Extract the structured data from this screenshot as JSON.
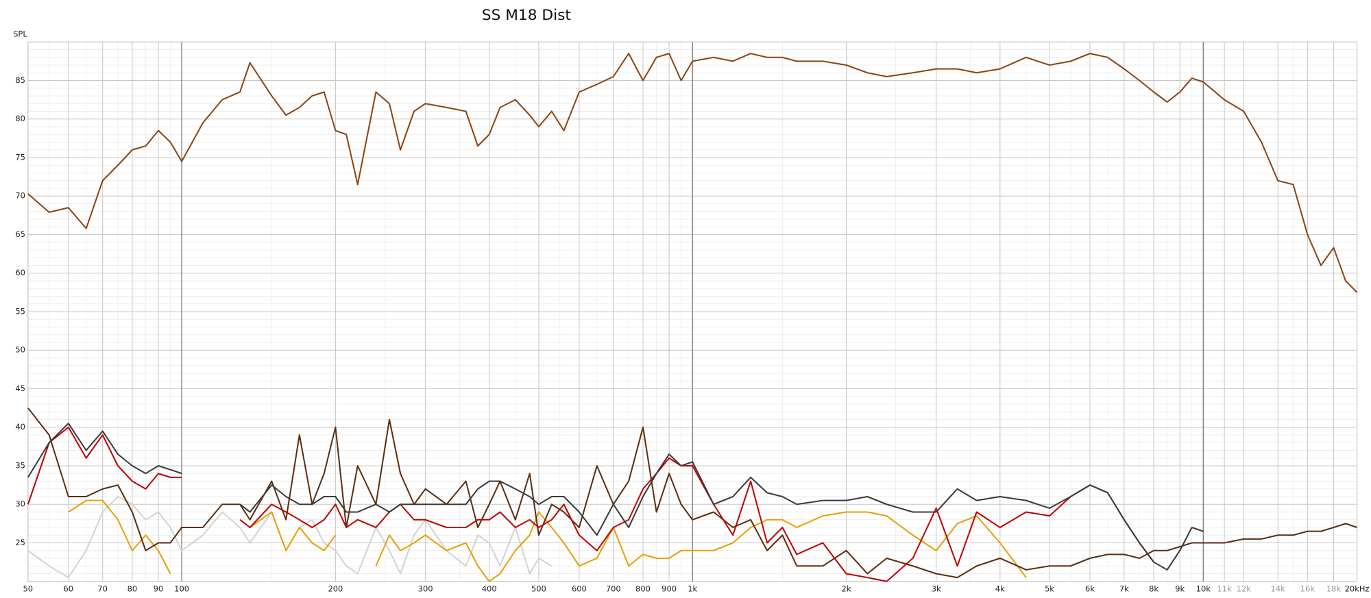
{
  "chart_data": {
    "type": "line",
    "title": "SS M18 Dist",
    "ylabel": "SPL",
    "xscale": "log",
    "grid": true,
    "xlim": [
      50,
      20000
    ],
    "ylim": [
      20,
      90
    ],
    "yticks": [
      25,
      30,
      35,
      40,
      45,
      50,
      55,
      60,
      65,
      70,
      75,
      80,
      85
    ],
    "xticks": [
      50,
      60,
      70,
      80,
      90,
      100,
      200,
      300,
      400,
      500,
      600,
      700,
      800,
      900,
      {
        "value": 1000,
        "label": "1k"
      },
      {
        "value": 2000,
        "label": "2k"
      },
      {
        "value": 3000,
        "label": "3k"
      },
      {
        "value": 4000,
        "label": "4k"
      },
      {
        "value": 5000,
        "label": "5k"
      },
      {
        "value": 6000,
        "label": "6k"
      },
      {
        "value": 7000,
        "label": "7k"
      },
      {
        "value": 8000,
        "label": "8k"
      },
      {
        "value": 9000,
        "label": "9k"
      },
      {
        "value": 10000,
        "label": "10k"
      },
      {
        "value": 11000,
        "label": "11k"
      },
      {
        "value": 12000,
        "label": "12k"
      },
      {
        "value": 14000,
        "label": "14k"
      },
      {
        "value": 16000,
        "label": "16k"
      },
      {
        "value": 18000,
        "label": "18k"
      },
      {
        "value": 20000,
        "label": "20kHz"
      }
    ],
    "x": [
      50,
      55,
      60,
      65,
      70,
      75,
      80,
      85,
      90,
      95,
      100,
      110,
      120,
      130,
      136,
      150,
      160,
      170,
      180,
      190,
      200,
      210,
      221,
      240,
      255,
      268,
      285,
      300,
      330,
      360,
      380,
      400,
      420,
      450,
      480,
      500,
      530,
      560,
      600,
      650,
      700,
      750,
      800,
      850,
      900,
      950,
      1000,
      1100,
      1200,
      1300,
      1400,
      1500,
      1600,
      1800,
      2000,
      2200,
      2400,
      2700,
      3000,
      3300,
      3600,
      4000,
      4500,
      5000,
      5500,
      6000,
      6500,
      7000,
      7500,
      8000,
      8500,
      9000,
      9500,
      10000,
      11000,
      12000,
      13000,
      14000,
      15000,
      16000,
      17000,
      18000,
      19000,
      20000
    ],
    "series": [
      {
        "color": "#d3d3d3",
        "values": [
          24,
          22,
          20.5,
          24,
          29,
          31,
          30,
          28,
          29,
          27,
          24,
          26,
          29,
          27,
          25,
          29,
          24,
          27,
          28,
          25,
          24,
          22,
          21,
          27,
          24,
          21,
          26,
          28,
          24,
          22,
          26,
          25,
          22,
          27,
          21,
          23,
          22,
          null,
          null,
          null,
          null,
          null,
          null,
          null,
          null,
          null,
          null,
          null,
          null,
          null,
          null,
          null,
          null,
          null,
          null,
          null,
          null,
          null,
          null,
          null,
          null,
          null,
          null,
          null,
          null,
          null,
          null,
          null,
          null,
          null,
          null,
          null,
          null,
          null,
          null,
          null,
          null,
          null,
          null,
          null,
          null,
          null,
          null,
          null
        ]
      },
      {
        "color": "#e8a000",
        "values": [
          null,
          null,
          29,
          30.5,
          30.5,
          28,
          24,
          26,
          24,
          21,
          null,
          null,
          null,
          null,
          27,
          29,
          24,
          27,
          25,
          24,
          26,
          null,
          null,
          22,
          26,
          24,
          25,
          26,
          24,
          25,
          22,
          20,
          21,
          24,
          26,
          29,
          27,
          25,
          22,
          23,
          27,
          22,
          23.5,
          23,
          23,
          24,
          24,
          24,
          25,
          27,
          28,
          28,
          27,
          28.5,
          29,
          29,
          28.5,
          26,
          24,
          27.5,
          28.5,
          25,
          20.5,
          null,
          null,
          null,
          null,
          null,
          null,
          null,
          null,
          null,
          null,
          null,
          null,
          null,
          null,
          null,
          null,
          null,
          null,
          null,
          null,
          null
        ]
      },
      {
        "color": "#5c2e0e",
        "values": [
          42.5,
          39,
          31,
          31,
          32,
          32.5,
          29,
          24,
          25,
          25,
          27,
          27,
          30,
          30,
          28,
          33,
          28,
          39,
          30,
          34,
          40,
          27,
          35,
          30,
          41,
          34,
          30,
          32,
          30,
          33,
          27,
          30,
          33,
          28,
          34,
          26,
          30,
          29,
          27,
          35,
          30,
          33,
          40,
          29,
          34,
          30,
          28,
          29,
          27,
          28,
          24,
          26,
          22,
          22,
          24,
          21,
          23,
          22,
          21,
          20.5,
          22,
          23,
          21.5,
          22,
          22,
          23,
          23.5,
          23.5,
          23,
          24,
          24,
          24.5,
          25,
          25,
          25,
          25.5,
          25.5,
          26,
          26,
          26.5,
          26.5,
          27,
          27.5,
          27
        ]
      },
      {
        "color": "#c00000",
        "values": [
          30,
          38,
          40,
          36,
          39,
          35,
          33,
          32,
          34,
          33.5,
          33.5,
          null,
          null,
          28,
          27,
          30,
          29,
          28,
          27,
          28,
          30,
          27,
          28,
          27,
          29,
          30,
          28,
          28,
          27,
          27,
          28,
          28,
          29,
          27,
          28,
          27,
          28,
          30,
          26,
          24,
          27,
          28,
          32,
          34,
          36,
          35,
          35,
          30,
          26,
          33,
          25,
          27,
          23.5,
          25,
          21,
          20.5,
          20,
          23,
          29.5,
          22,
          29,
          27,
          29,
          28.5,
          31,
          32.5,
          31.5,
          28,
          25,
          22.5,
          null,
          null,
          null,
          null,
          null,
          null,
          null,
          null,
          null,
          null,
          null,
          null,
          null,
          null
        ]
      },
      {
        "color": "#3a3a3a",
        "values": [
          33.5,
          38,
          40.5,
          37,
          39.5,
          36.5,
          35,
          34,
          35,
          34.5,
          34,
          null,
          null,
          30,
          29,
          32.5,
          31,
          30,
          30,
          31,
          31,
          29,
          29,
          30,
          29,
          30,
          30,
          30,
          30,
          30,
          32,
          33,
          33,
          32,
          31,
          30,
          31,
          31,
          29,
          26,
          30,
          27,
          31,
          34,
          36.5,
          35,
          35.5,
          30,
          31,
          33.5,
          31.5,
          31,
          30,
          30.5,
          30.5,
          31,
          30,
          29,
          29,
          32,
          30.5,
          31,
          30.5,
          29.5,
          31,
          32.5,
          31.5,
          28,
          25,
          22.5,
          21.5,
          24,
          27,
          26.5,
          null,
          null,
          null,
          null,
          null,
          null,
          null,
          null,
          null,
          null
        ]
      },
      {
        "color": "#8b4513",
        "values": [
          70.3,
          67.9,
          68.5,
          65.8,
          72,
          74,
          76,
          76.5,
          78.5,
          77,
          74.5,
          79.5,
          82.5,
          83.5,
          87.3,
          83,
          80.5,
          81.5,
          83,
          83.5,
          78.5,
          78,
          71.5,
          83.5,
          82,
          76,
          81,
          82,
          81.5,
          81,
          76.5,
          78,
          81.5,
          82.5,
          80.5,
          79,
          81,
          78.5,
          83.5,
          84.5,
          85.5,
          88.5,
          85,
          88,
          88.5,
          85,
          87.5,
          88,
          87.5,
          88.5,
          88,
          88,
          87.5,
          87.5,
          87,
          86,
          85.5,
          86,
          86.5,
          86.5,
          86,
          86.5,
          88,
          87,
          87.5,
          88.5,
          88,
          86.5,
          85,
          83.5,
          82.2,
          83.5,
          85.3,
          84.8,
          82.5,
          81,
          77,
          72,
          71.5,
          65,
          61,
          63.3,
          59,
          57.5
        ]
      }
    ]
  }
}
